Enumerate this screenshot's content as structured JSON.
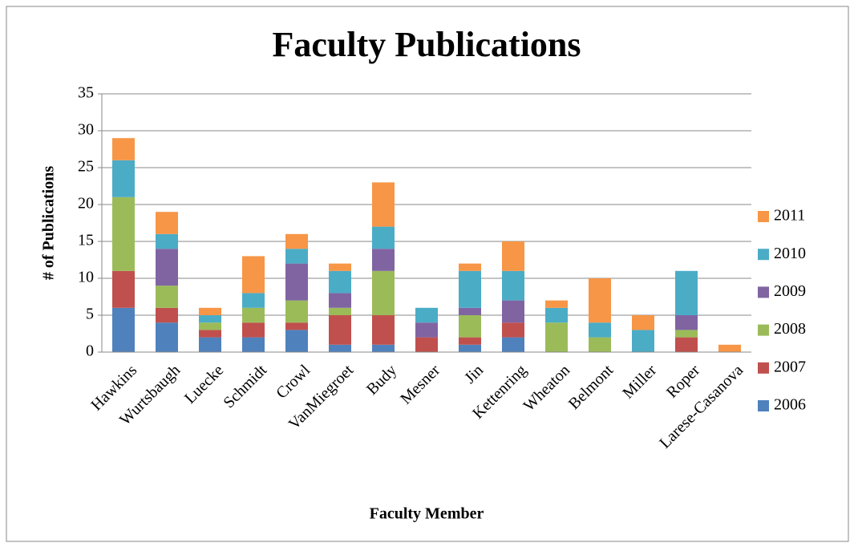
{
  "chart_data": {
    "type": "stacked_bar",
    "title": "Faculty Publications",
    "x_label": "Faculty Member",
    "y_label": "# of Publications",
    "categories": [
      "Hawkins",
      "Wurtsbaugh",
      "Luecke",
      "Schmidt",
      "Crowl",
      "VanMiegroet",
      "Budy",
      "Mesner",
      "Jin",
      "Kettenring",
      "Wheaton",
      "Belmont",
      "Miller",
      "Roper",
      "Larese-Casanova"
    ],
    "series": [
      {
        "name": "2006",
        "color": "#4f81bd",
        "values": [
          6,
          4,
          2,
          2,
          3,
          1,
          1,
          0,
          1,
          2,
          0,
          0,
          0,
          0,
          0
        ]
      },
      {
        "name": "2007",
        "color": "#c0504d",
        "values": [
          5,
          2,
          1,
          2,
          1,
          4,
          4,
          2,
          1,
          2,
          0,
          0,
          0,
          2,
          0
        ]
      },
      {
        "name": "2008",
        "color": "#9bbb59",
        "values": [
          10,
          3,
          1,
          2,
          3,
          1,
          6,
          0,
          3,
          0,
          4,
          2,
          0,
          1,
          0
        ]
      },
      {
        "name": "2009",
        "color": "#8064a2",
        "values": [
          0,
          5,
          0,
          0,
          5,
          2,
          3,
          2,
          1,
          3,
          0,
          0,
          0,
          2,
          0
        ]
      },
      {
        "name": "2010",
        "color": "#4bacc6",
        "values": [
          5,
          2,
          1,
          2,
          2,
          3,
          3,
          2,
          5,
          4,
          2,
          2,
          3,
          6,
          0
        ]
      },
      {
        "name": "2011",
        "color": "#f79646",
        "values": [
          3,
          3,
          1,
          5,
          2,
          1,
          6,
          0,
          1,
          4,
          1,
          6,
          2,
          0,
          1
        ]
      }
    ],
    "ylim": [
      0,
      35
    ],
    "yticks": [
      0,
      5,
      10,
      15,
      20,
      25,
      30,
      35
    ],
    "grid": true,
    "legend": "right"
  }
}
